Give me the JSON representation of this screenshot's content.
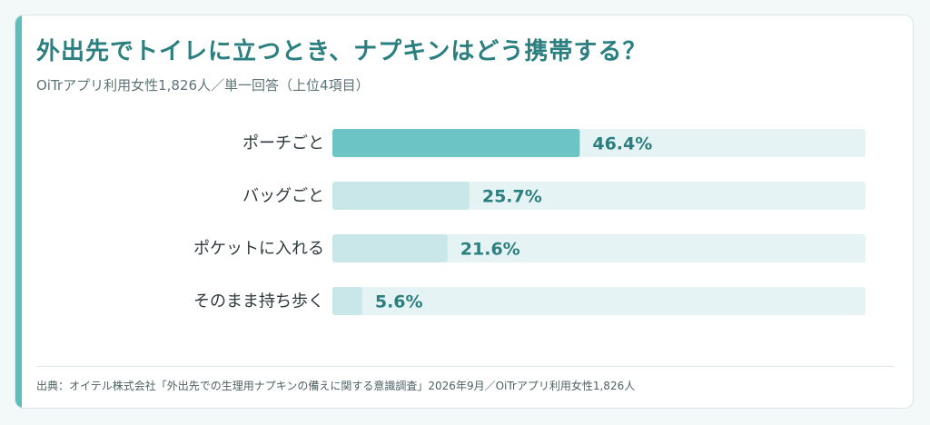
{
  "header": {
    "title": "外出先でトイレに立つとき、ナプキンはどう携帯する？",
    "subtitle": "OiTrアプリ利用女性1,826人／単一回答（上位4項目）"
  },
  "footer": {
    "source": "出典：オイテル株式会社「外出先での生理用ナプキンの備えに関する意識調査」2026年9月／OiTrアプリ利用女性1,826人"
  },
  "colors": {
    "accent": "#5bbfc0",
    "bar_primary": "#6cc4c5",
    "bar_secondary": "#c9e7e8",
    "track": "#e6f3f4",
    "value_text": "#2b7f80"
  },
  "chart_data": {
    "type": "bar",
    "orientation": "horizontal",
    "categories": [
      "ポーチごと",
      "バッグごと",
      "ポケットに入れる",
      "そのまま持ち歩く"
    ],
    "values": [
      46.4,
      25.7,
      21.6,
      5.6
    ],
    "value_labels": [
      "46.4%",
      "25.7%",
      "21.6%",
      "5.6%"
    ],
    "xlim": [
      0,
      100
    ],
    "grid": false,
    "legend": "none"
  }
}
